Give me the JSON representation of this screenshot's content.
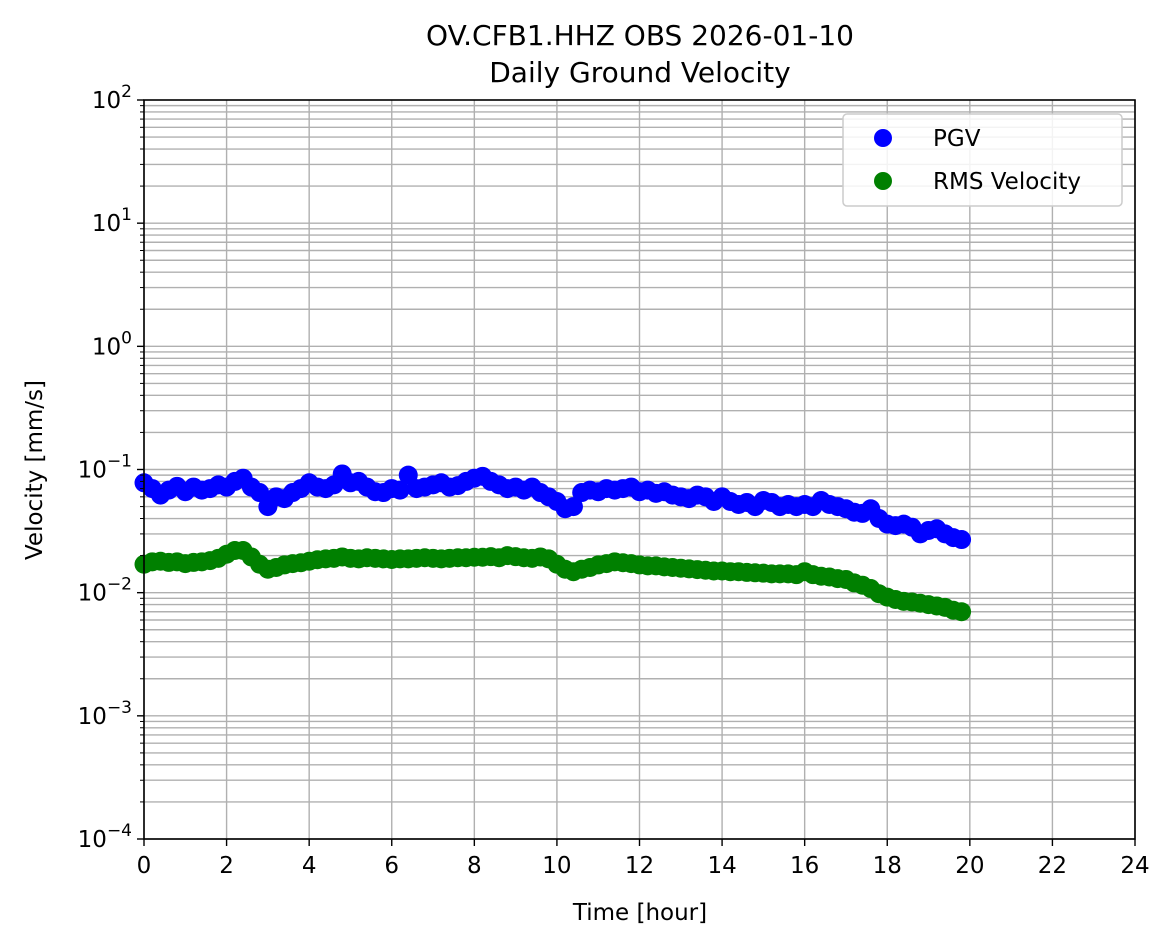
{
  "chart_data": {
    "type": "scatter",
    "title": "OV.CFB1.HHZ OBS 2026-01-10",
    "subtitle": "Daily Ground Velocity",
    "xlabel": "Time [hour]",
    "ylabel": "Velocity [mm/s]",
    "xlim": [
      0,
      24
    ],
    "ylim": [
      0.0001,
      100
    ],
    "yscale": "log",
    "x_ticks": [
      0,
      2,
      4,
      6,
      8,
      10,
      12,
      14,
      16,
      18,
      20,
      22,
      24
    ],
    "y_ticks": [
      {
        "value": 0.0001,
        "base": "10",
        "exp": "−4"
      },
      {
        "value": 0.001,
        "base": "10",
        "exp": "−3"
      },
      {
        "value": 0.01,
        "base": "10",
        "exp": "−2"
      },
      {
        "value": 0.1,
        "base": "10",
        "exp": "−1"
      },
      {
        "value": 1,
        "base": "10",
        "exp": "0"
      },
      {
        "value": 10,
        "base": "10",
        "exp": "1"
      },
      {
        "value": 100,
        "base": "10",
        "exp": "2"
      }
    ],
    "grid": true,
    "legend_position": "top-right",
    "series": [
      {
        "name": "PGV",
        "color": "#0000ff",
        "x": [
          0.0,
          0.2,
          0.4,
          0.6,
          0.8,
          1.0,
          1.2,
          1.4,
          1.6,
          1.8,
          2.0,
          2.2,
          2.4,
          2.6,
          2.8,
          3.0,
          3.2,
          3.4,
          3.6,
          3.8,
          4.0,
          4.2,
          4.4,
          4.6,
          4.8,
          5.0,
          5.2,
          5.4,
          5.6,
          5.8,
          6.0,
          6.2,
          6.4,
          6.6,
          6.8,
          7.0,
          7.2,
          7.4,
          7.6,
          7.8,
          8.0,
          8.2,
          8.4,
          8.6,
          8.8,
          9.0,
          9.2,
          9.4,
          9.6,
          9.8,
          10.0,
          10.2,
          10.4,
          10.6,
          10.8,
          11.0,
          11.2,
          11.4,
          11.6,
          11.8,
          12.0,
          12.2,
          12.4,
          12.6,
          12.8,
          13.0,
          13.2,
          13.4,
          13.6,
          13.8,
          14.0,
          14.2,
          14.4,
          14.6,
          14.8,
          15.0,
          15.2,
          15.4,
          15.6,
          15.8,
          16.0,
          16.2,
          16.4,
          16.6,
          16.8,
          17.0,
          17.2,
          17.4,
          17.6,
          17.8,
          18.0,
          18.2,
          18.4,
          18.6,
          18.8,
          19.0,
          19.2,
          19.4,
          19.6,
          19.8
        ],
        "y": [
          0.078,
          0.07,
          0.062,
          0.068,
          0.073,
          0.066,
          0.072,
          0.068,
          0.07,
          0.075,
          0.072,
          0.08,
          0.085,
          0.072,
          0.065,
          0.05,
          0.06,
          0.058,
          0.065,
          0.07,
          0.078,
          0.072,
          0.07,
          0.075,
          0.092,
          0.078,
          0.08,
          0.072,
          0.066,
          0.065,
          0.07,
          0.068,
          0.09,
          0.07,
          0.072,
          0.075,
          0.078,
          0.072,
          0.074,
          0.08,
          0.085,
          0.088,
          0.08,
          0.075,
          0.07,
          0.072,
          0.068,
          0.072,
          0.065,
          0.06,
          0.055,
          0.048,
          0.05,
          0.065,
          0.068,
          0.066,
          0.07,
          0.068,
          0.07,
          0.072,
          0.066,
          0.068,
          0.064,
          0.066,
          0.062,
          0.06,
          0.058,
          0.062,
          0.06,
          0.055,
          0.06,
          0.055,
          0.052,
          0.054,
          0.05,
          0.056,
          0.054,
          0.05,
          0.052,
          0.05,
          0.052,
          0.05,
          0.056,
          0.052,
          0.05,
          0.048,
          0.045,
          0.044,
          0.048,
          0.04,
          0.036,
          0.035,
          0.036,
          0.034,
          0.03,
          0.032,
          0.033,
          0.03,
          0.028,
          0.027
        ]
      },
      {
        "name": "RMS Velocity",
        "color": "#008000",
        "x": [
          0.0,
          0.2,
          0.4,
          0.6,
          0.8,
          1.0,
          1.2,
          1.4,
          1.6,
          1.8,
          2.0,
          2.2,
          2.4,
          2.6,
          2.8,
          3.0,
          3.2,
          3.4,
          3.6,
          3.8,
          4.0,
          4.2,
          4.4,
          4.6,
          4.8,
          5.0,
          5.2,
          5.4,
          5.6,
          5.8,
          6.0,
          6.2,
          6.4,
          6.6,
          6.8,
          7.0,
          7.2,
          7.4,
          7.6,
          7.8,
          8.0,
          8.2,
          8.4,
          8.6,
          8.8,
          9.0,
          9.2,
          9.4,
          9.6,
          9.8,
          10.0,
          10.2,
          10.4,
          10.6,
          10.8,
          11.0,
          11.2,
          11.4,
          11.6,
          11.8,
          12.0,
          12.2,
          12.4,
          12.6,
          12.8,
          13.0,
          13.2,
          13.4,
          13.6,
          13.8,
          14.0,
          14.2,
          14.4,
          14.6,
          14.8,
          15.0,
          15.2,
          15.4,
          15.6,
          15.8,
          16.0,
          16.2,
          16.4,
          16.6,
          16.8,
          17.0,
          17.2,
          17.4,
          17.6,
          17.8,
          18.0,
          18.2,
          18.4,
          18.6,
          18.8,
          19.0,
          19.2,
          19.4,
          19.6,
          19.8
        ],
        "y": [
          0.017,
          0.0178,
          0.018,
          0.0176,
          0.0178,
          0.0172,
          0.0176,
          0.0178,
          0.0182,
          0.019,
          0.0205,
          0.022,
          0.022,
          0.0195,
          0.017,
          0.0155,
          0.016,
          0.0168,
          0.0172,
          0.0175,
          0.018,
          0.0185,
          0.0188,
          0.019,
          0.0195,
          0.019,
          0.0188,
          0.0192,
          0.019,
          0.0188,
          0.0186,
          0.0188,
          0.0188,
          0.019,
          0.0192,
          0.019,
          0.0188,
          0.019,
          0.0192,
          0.0192,
          0.0194,
          0.0194,
          0.0196,
          0.0192,
          0.02,
          0.0196,
          0.0192,
          0.019,
          0.0195,
          0.0188,
          0.017,
          0.0155,
          0.0148,
          0.0155,
          0.016,
          0.0168,
          0.0172,
          0.0178,
          0.0175,
          0.0172,
          0.0168,
          0.0165,
          0.0165,
          0.0162,
          0.016,
          0.0158,
          0.0156,
          0.0154,
          0.0152,
          0.015,
          0.015,
          0.0148,
          0.0148,
          0.0146,
          0.0145,
          0.0144,
          0.0142,
          0.0142,
          0.0142,
          0.014,
          0.0148,
          0.014,
          0.0136,
          0.0134,
          0.013,
          0.0128,
          0.012,
          0.0115,
          0.0108,
          0.0098,
          0.0092,
          0.0088,
          0.0085,
          0.0084,
          0.0082,
          0.008,
          0.0078,
          0.0076,
          0.0072,
          0.007
        ]
      }
    ]
  }
}
